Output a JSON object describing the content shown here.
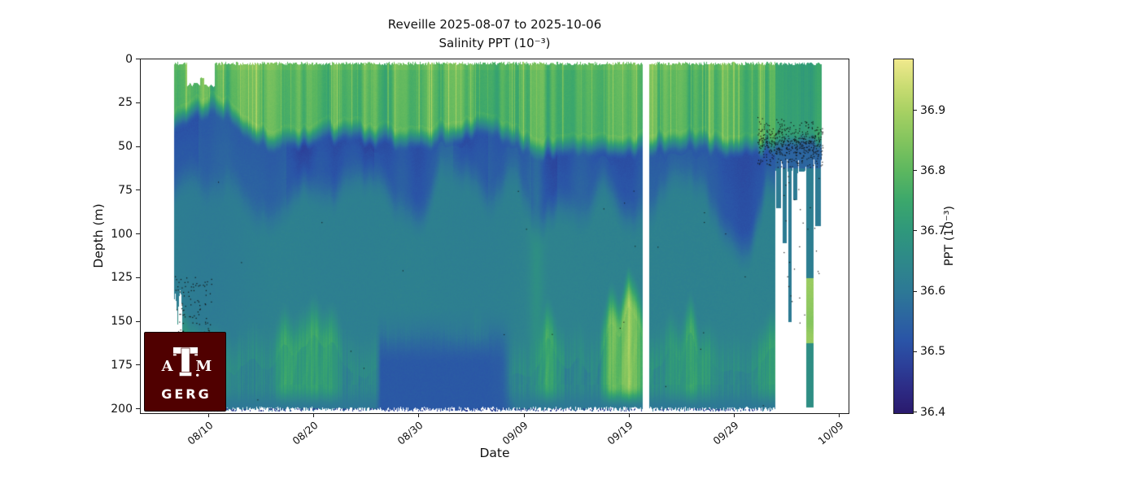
{
  "figure": {
    "title_line1": "Reveille 2025-08-07 to 2025-10-06",
    "title_line2": "Salinity PPT (10⁻³)",
    "background_color": "#ffffff"
  },
  "axes": {
    "xlabel": "Date",
    "ylabel": "Depth (m)",
    "x_tick_labels": [
      "08/10",
      "08/20",
      "08/30",
      "09/09",
      "09/19",
      "09/29",
      "10/09"
    ],
    "y_tick_labels": [
      "0",
      "25",
      "50",
      "75",
      "100",
      "125",
      "150",
      "175",
      "200"
    ],
    "y_tick_values": [
      0,
      25,
      50,
      75,
      100,
      125,
      150,
      175,
      200
    ]
  },
  "colorbar": {
    "label": "PPT (10⁻³)",
    "tick_labels": [
      "36.4",
      "36.5",
      "36.6",
      "36.7",
      "36.8",
      "36.9"
    ],
    "tick_values": [
      36.4,
      36.5,
      36.6,
      36.7,
      36.8,
      36.9
    ],
    "vmin": 36.4,
    "vmax": 36.985,
    "stops": [
      [
        36.4,
        "#2a1a6d"
      ],
      [
        36.44,
        "#2d2b85"
      ],
      [
        36.48,
        "#2c4099"
      ],
      [
        36.52,
        "#2a54a7"
      ],
      [
        36.56,
        "#2c66a0"
      ],
      [
        36.6,
        "#2d7896"
      ],
      [
        36.65,
        "#2e888a"
      ],
      [
        36.7,
        "#2f977c"
      ],
      [
        36.75,
        "#3ba76c"
      ],
      [
        36.8,
        "#5cb75f"
      ],
      [
        36.85,
        "#82c45e"
      ],
      [
        36.9,
        "#a8d163"
      ],
      [
        36.94,
        "#c9dc72"
      ],
      [
        36.985,
        "#f0e98d"
      ]
    ]
  },
  "logo": {
    "org": "GERG",
    "letters": [
      "A",
      "T",
      "M"
    ],
    "bg_color": "#500000",
    "text_color": "#ffffff"
  },
  "chart_data": {
    "type": "heatmap",
    "title": "Reveille 2025-08-07 to 2025-10-06",
    "subtitle": "Salinity PPT (10⁻³)",
    "xlabel": "Date",
    "ylabel": "Depth (m)",
    "date_range": [
      "2025-08-07",
      "2025-10-06"
    ],
    "depth_range_m": [
      0,
      200
    ],
    "x_tick_labels": [
      "08/10",
      "08/20",
      "08/30",
      "09/09",
      "09/19",
      "09/29",
      "10/09"
    ],
    "colormap": "cmocean-haline",
    "value_range_ppt": [
      36.4,
      36.985
    ],
    "layers": [
      {
        "name": "surface mixed layer",
        "depth_m": [
          0,
          35
        ],
        "salinity_ppt": [
          36.72,
          36.88
        ],
        "appearance": "green with vertical yellow-green streaks"
      },
      {
        "name": "subsurface salinity minimum",
        "depth_m": [
          35,
          75
        ],
        "salinity_ppt": [
          36.5,
          36.58
        ],
        "appearance": "dark blue band, ragged upper edge"
      },
      {
        "name": "intermediate water",
        "depth_m": [
          75,
          125
        ],
        "salinity_ppt": [
          36.6,
          36.66
        ],
        "appearance": "uniform teal"
      },
      {
        "name": "deep salinity maximum plumes",
        "depth_m": [
          125,
          195
        ],
        "salinity_ppt": [
          36.8,
          36.97
        ],
        "appearance": "flame-like yellow-green plumes, tips reach 110-160 m, teal valleys and occasional dark-blue channels between them"
      },
      {
        "name": "near-bottom fringe",
        "depth_m": [
          195,
          200
        ],
        "salinity_ppt": [
          36.45,
          36.62
        ],
        "appearance": "teal with scattered blue/indigo dots"
      }
    ],
    "events": {
      "missing_surface_at_start_days": [
        0.85,
        3.5
      ],
      "missing_surface_depth_m": [
        0,
        14
      ],
      "short_first_profiles_max_depth_m": 140,
      "data_gap_days": [
        44.2,
        44.85
      ],
      "data_gap_date": "2025-09-20",
      "dense_data_end_day": 56.8,
      "sparse_tail_end_day": 61.2,
      "sparse_tail_description": "final profiles truncated near 55-65 m with narrow teal spikes to 60-200 m, one deep spike showing yellow max at 130-160 m",
      "qc_speckles": "black speckled points at 35-65 m in final days and near 125-155 m at deployment start"
    }
  }
}
